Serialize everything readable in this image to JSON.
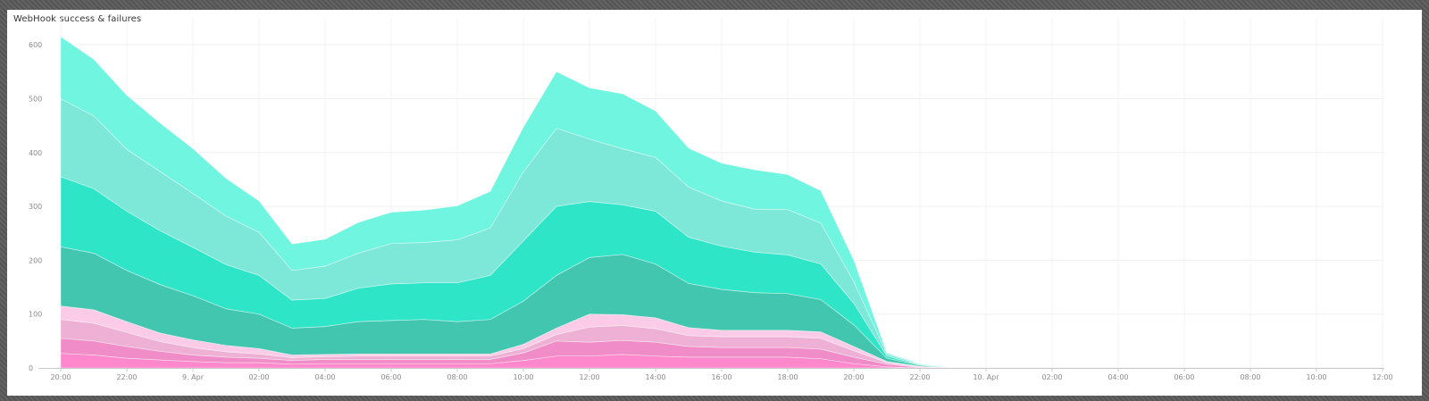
{
  "panel": {
    "title": "WebHook success & failures"
  },
  "chart_data": {
    "type": "area",
    "stacked": true,
    "title": "WebHook success & failures",
    "xlabel": "",
    "ylabel": "",
    "x_tick_labels": [
      "20:00",
      "22:00",
      "9. Apr",
      "02:00",
      "04:00",
      "06:00",
      "08:00",
      "10:00",
      "12:00",
      "14:00",
      "16:00",
      "18:00",
      "20:00",
      "22:00",
      "10. Apr",
      "02:00",
      "04:00",
      "06:00",
      "08:00",
      "10:00",
      "12:00"
    ],
    "y_ticks": [
      0,
      100,
      200,
      300,
      400,
      500,
      600
    ],
    "ylim": [
      0,
      650
    ],
    "x_hours": [
      0,
      1,
      2,
      3,
      4,
      5,
      6,
      7,
      8,
      9,
      10,
      11,
      12,
      13,
      14,
      15,
      16,
      17,
      18,
      19,
      20,
      21,
      22,
      23,
      24,
      25,
      26,
      27
    ],
    "grid": true,
    "legend": "none",
    "series": [
      {
        "color": "#ff88cc",
        "values": [
          27,
          24,
          18,
          15,
          12,
          10,
          10,
          7,
          8,
          8,
          8,
          8,
          8,
          8,
          14,
          22,
          22,
          25,
          22,
          20,
          20,
          20,
          20,
          17,
          8,
          2,
          0,
          0
        ]
      },
      {
        "color": "#f08cc8",
        "values": [
          28,
          26,
          22,
          16,
          12,
          10,
          8,
          7,
          8,
          8,
          8,
          8,
          8,
          8,
          14,
          28,
          26,
          26,
          26,
          20,
          18,
          18,
          18,
          18,
          12,
          5,
          1,
          0
        ]
      },
      {
        "color": "#eeb0d4",
        "values": [
          35,
          33,
          26,
          18,
          14,
          10,
          8,
          5,
          5,
          6,
          6,
          6,
          6,
          6,
          8,
          12,
          28,
          28,
          25,
          20,
          20,
          20,
          20,
          20,
          12,
          3,
          1,
          0
        ]
      },
      {
        "color": "#fbcbe8",
        "values": [
          25,
          25,
          20,
          16,
          14,
          12,
          10,
          5,
          4,
          4,
          4,
          4,
          4,
          4,
          8,
          12,
          24,
          20,
          20,
          15,
          12,
          12,
          12,
          12,
          8,
          2,
          1,
          0
        ]
      },
      {
        "color": "#43c6b0",
        "values": [
          110,
          105,
          95,
          90,
          82,
          68,
          64,
          50,
          52,
          60,
          62,
          64,
          60,
          64,
          80,
          98,
          105,
          112,
          100,
          82,
          76,
          70,
          68,
          60,
          40,
          6,
          2,
          0
        ]
      },
      {
        "color": "#2ee5c7",
        "values": [
          130,
          120,
          110,
          100,
          90,
          82,
          72,
          52,
          52,
          62,
          68,
          68,
          72,
          82,
          112,
          128,
          104,
          92,
          98,
          86,
          80,
          75,
          72,
          66,
          40,
          4,
          1,
          0
        ]
      },
      {
        "color": "#7ee8d8",
        "values": [
          145,
          135,
          115,
          110,
          100,
          90,
          80,
          55,
          60,
          65,
          75,
          75,
          80,
          88,
          128,
          145,
          116,
          104,
          100,
          93,
          84,
          80,
          84,
          76,
          40,
          4,
          1,
          0
        ]
      },
      {
        "color": "#6ff5e0",
        "values": [
          115,
          105,
          100,
          90,
          83,
          70,
          58,
          49,
          50,
          57,
          58,
          60,
          63,
          68,
          83,
          105,
          95,
          102,
          86,
          72,
          70,
          73,
          65,
          60,
          40,
          2,
          1,
          0
        ]
      }
    ]
  }
}
